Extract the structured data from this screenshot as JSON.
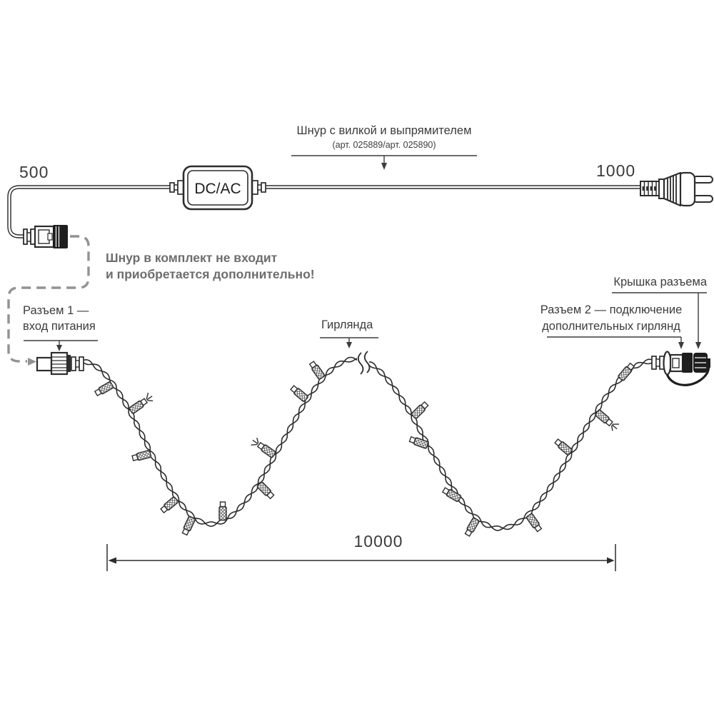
{
  "colors": {
    "line": "#2d2d2d",
    "label_text": "#3c3c3c",
    "note_gray": "#6d6d6d",
    "dashed_gray": "#929292",
    "black_fill": "#1e1e1e"
  },
  "cord_label": {
    "title": "Шнур с вилкой и выпрямителем",
    "subtitle": "(арт. 025889/арт. 025890)"
  },
  "dimensions": {
    "left_cord": "500",
    "right_cord": "1000",
    "garland_length": "10000"
  },
  "note": {
    "line1": "Шнур в комплект не входит",
    "line2": "и приобретается дополнительно!"
  },
  "connector1_label": {
    "line1": "Разъем 1 —",
    "line2": "вход питания"
  },
  "connector2_label": {
    "line1": "Разъем 2 — подключение",
    "line2": "дополнительных гирлянд"
  },
  "cap_label": "Крышка разъема",
  "garland_label": "Гирлянда",
  "converter_label": "DC/AC"
}
